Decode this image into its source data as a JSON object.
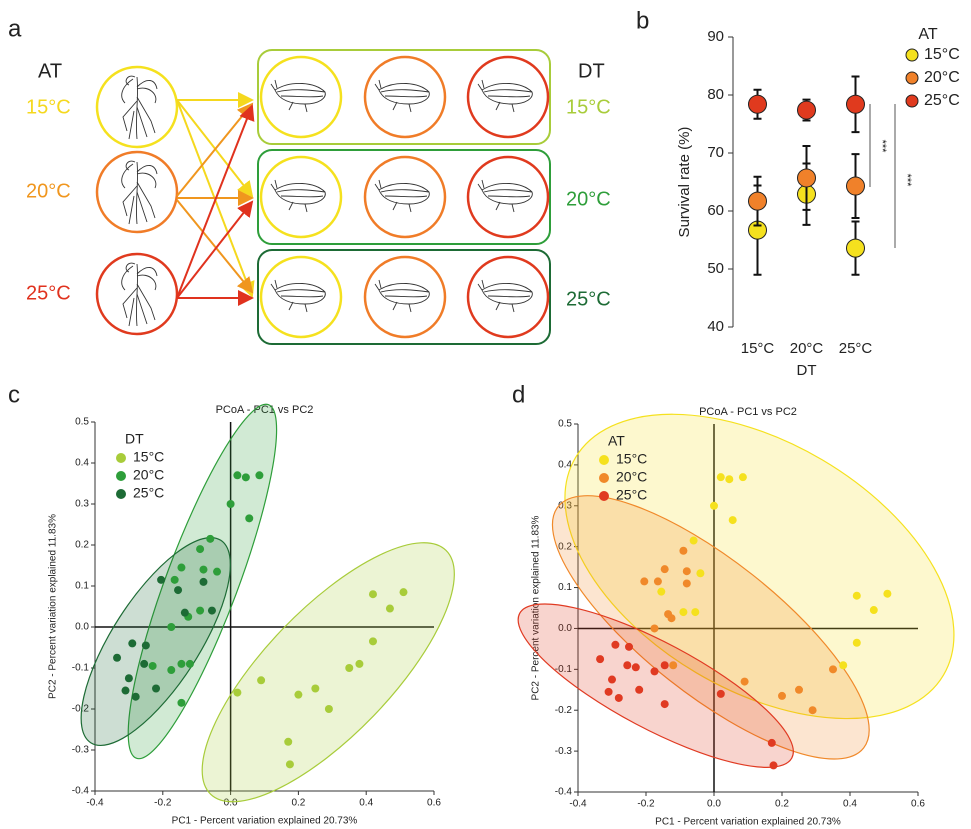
{
  "panels": [
    "a",
    "b",
    "c",
    "d"
  ],
  "diagram": {
    "at_label": "AT",
    "dt_label": "DT",
    "at_levels": [
      "15°C",
      "20°C",
      "25°C"
    ],
    "dt_levels": [
      "15°C",
      "20°C",
      "25°C"
    ]
  },
  "chart_data": [
    {
      "type": "dot",
      "categories": [
        "15°C",
        "20°C",
        "25°C"
      ],
      "xlabel": "DT",
      "ylabel": "Survival rate (%)",
      "ylim": [
        40,
        90
      ],
      "yticks": [
        40,
        50,
        60,
        70,
        80,
        90
      ],
      "legend_title": "AT",
      "legend": "right",
      "annotations": [
        "***",
        "***"
      ],
      "series": [
        {
          "name": "15°C",
          "color": "#f5e11e",
          "values": [
            56.7,
            62.9,
            53.6
          ],
          "errors": [
            7.7,
            5.3,
            4.6
          ]
        },
        {
          "name": "20°C",
          "color": "#f0812a",
          "values": [
            61.7,
            65.7,
            64.3
          ],
          "errors": [
            4.2,
            5.5,
            5.5
          ]
        },
        {
          "name": "25°C",
          "color": "#e03a1e",
          "values": [
            78.4,
            77.4,
            78.4
          ],
          "errors": [
            2.5,
            1.8,
            4.8
          ]
        }
      ]
    },
    {
      "type": "scatter",
      "title": "PCoA - PC1 vs PC2",
      "xlabel": "PC1 - Percent variation explained 20.73%",
      "ylabel": "PC2 - Percent variation explained 11.83%",
      "xlim": [
        -0.4,
        0.6
      ],
      "ylim": [
        -0.4,
        0.5
      ],
      "xticks": [
        -0.4,
        -0.2,
        {
          "value": 0,
          "label": "0.0"
        },
        0.2,
        0.4,
        0.6
      ],
      "yticks": [
        -0.4,
        -0.3,
        -0.2,
        -0.1,
        {
          "value": 0,
          "label": "0.0"
        },
        0.1,
        0.2,
        0.3,
        0.4,
        0.5
      ],
      "legend_title": "DT",
      "legend": "upper left",
      "series": [
        {
          "name": "15°C",
          "color": "#a8cc3a",
          "x": [
            0.42,
            0.51,
            0.47,
            0.42,
            0.38,
            0.35,
            0.25,
            0.2,
            0.29,
            0.09,
            0.02,
            0.17,
            0.175
          ],
          "values": [
            0.08,
            0.085,
            0.045,
            -0.035,
            -0.09,
            -0.1,
            -0.15,
            -0.165,
            -0.2,
            -0.13,
            -0.16,
            -0.28,
            -0.335
          ]
        },
        {
          "name": "20°C",
          "color": "#2e9e3a",
          "x": [
            0.02,
            0.045,
            0.085,
            0.055,
            0.0,
            -0.06,
            -0.09,
            -0.04,
            -0.08,
            -0.145,
            -0.165,
            -0.09,
            -0.125,
            -0.175,
            -0.145,
            -0.175,
            -0.23,
            -0.12,
            -0.145
          ],
          "values": [
            0.37,
            0.365,
            0.37,
            0.265,
            0.3,
            0.215,
            0.19,
            0.135,
            0.14,
            0.145,
            0.115,
            0.04,
            0.025,
            0.0,
            -0.09,
            -0.105,
            -0.095,
            -0.09,
            -0.185
          ]
        },
        {
          "name": "25°C",
          "color": "#1d6b35",
          "x": [
            -0.205,
            -0.155,
            -0.08,
            -0.135,
            -0.055,
            -0.29,
            -0.25,
            -0.335,
            -0.255,
            -0.3,
            -0.31,
            -0.28,
            -0.22
          ],
          "values": [
            0.115,
            0.09,
            0.11,
            0.035,
            0.04,
            -0.04,
            -0.045,
            -0.075,
            -0.09,
            -0.125,
            -0.155,
            -0.17,
            -0.15
          ]
        }
      ]
    },
    {
      "type": "scatter",
      "title": "PCoA - PC1 vs PC2",
      "xlabel": "PC1 - Percent variation explained 20.73%",
      "ylabel": "PC2 - Percent variation explained 11.83%",
      "xlim": [
        -0.4,
        0.6
      ],
      "ylim": [
        -0.4,
        0.5
      ],
      "xticks": [
        -0.4,
        -0.2,
        {
          "value": 0,
          "label": "0.0"
        },
        0.2,
        0.4,
        0.6
      ],
      "yticks": [
        -0.4,
        -0.3,
        -0.2,
        -0.1,
        {
          "value": 0,
          "label": "0.0"
        },
        0.1,
        0.2,
        0.3,
        0.4,
        0.5
      ],
      "legend_title": "AT",
      "legend": "upper left",
      "series": [
        {
          "name": "15°C",
          "color": "#f5e11e",
          "x": [
            0.42,
            0.51,
            0.47,
            0.42,
            0.38,
            0.02,
            0.045,
            0.085,
            0.055,
            0.0,
            -0.06,
            -0.04,
            -0.09,
            -0.155,
            -0.055
          ],
          "values": [
            0.08,
            0.085,
            0.045,
            -0.035,
            -0.09,
            0.37,
            0.365,
            0.37,
            0.265,
            0.3,
            0.215,
            0.135,
            0.04,
            0.09,
            0.04
          ]
        },
        {
          "name": "20°C",
          "color": "#f0892a",
          "x": [
            0.35,
            0.25,
            0.2,
            0.29,
            0.09,
            -0.09,
            -0.08,
            -0.145,
            -0.165,
            -0.125,
            -0.175,
            -0.12,
            -0.205,
            -0.08,
            -0.135
          ],
          "values": [
            -0.1,
            -0.15,
            -0.165,
            -0.2,
            -0.13,
            0.19,
            0.14,
            0.145,
            0.115,
            0.025,
            0.0,
            -0.09,
            0.115,
            0.11,
            0.035
          ]
        },
        {
          "name": "25°C",
          "color": "#e03a22",
          "x": [
            0.02,
            0.17,
            0.175,
            -0.145,
            -0.175,
            -0.23,
            -0.145,
            -0.29,
            -0.25,
            -0.335,
            -0.255,
            -0.3,
            -0.31,
            -0.28,
            -0.22
          ],
          "values": [
            -0.16,
            -0.28,
            -0.335,
            -0.09,
            -0.105,
            -0.095,
            -0.185,
            -0.04,
            -0.045,
            -0.075,
            -0.09,
            -0.125,
            -0.155,
            -0.17,
            -0.15
          ]
        }
      ]
    }
  ]
}
